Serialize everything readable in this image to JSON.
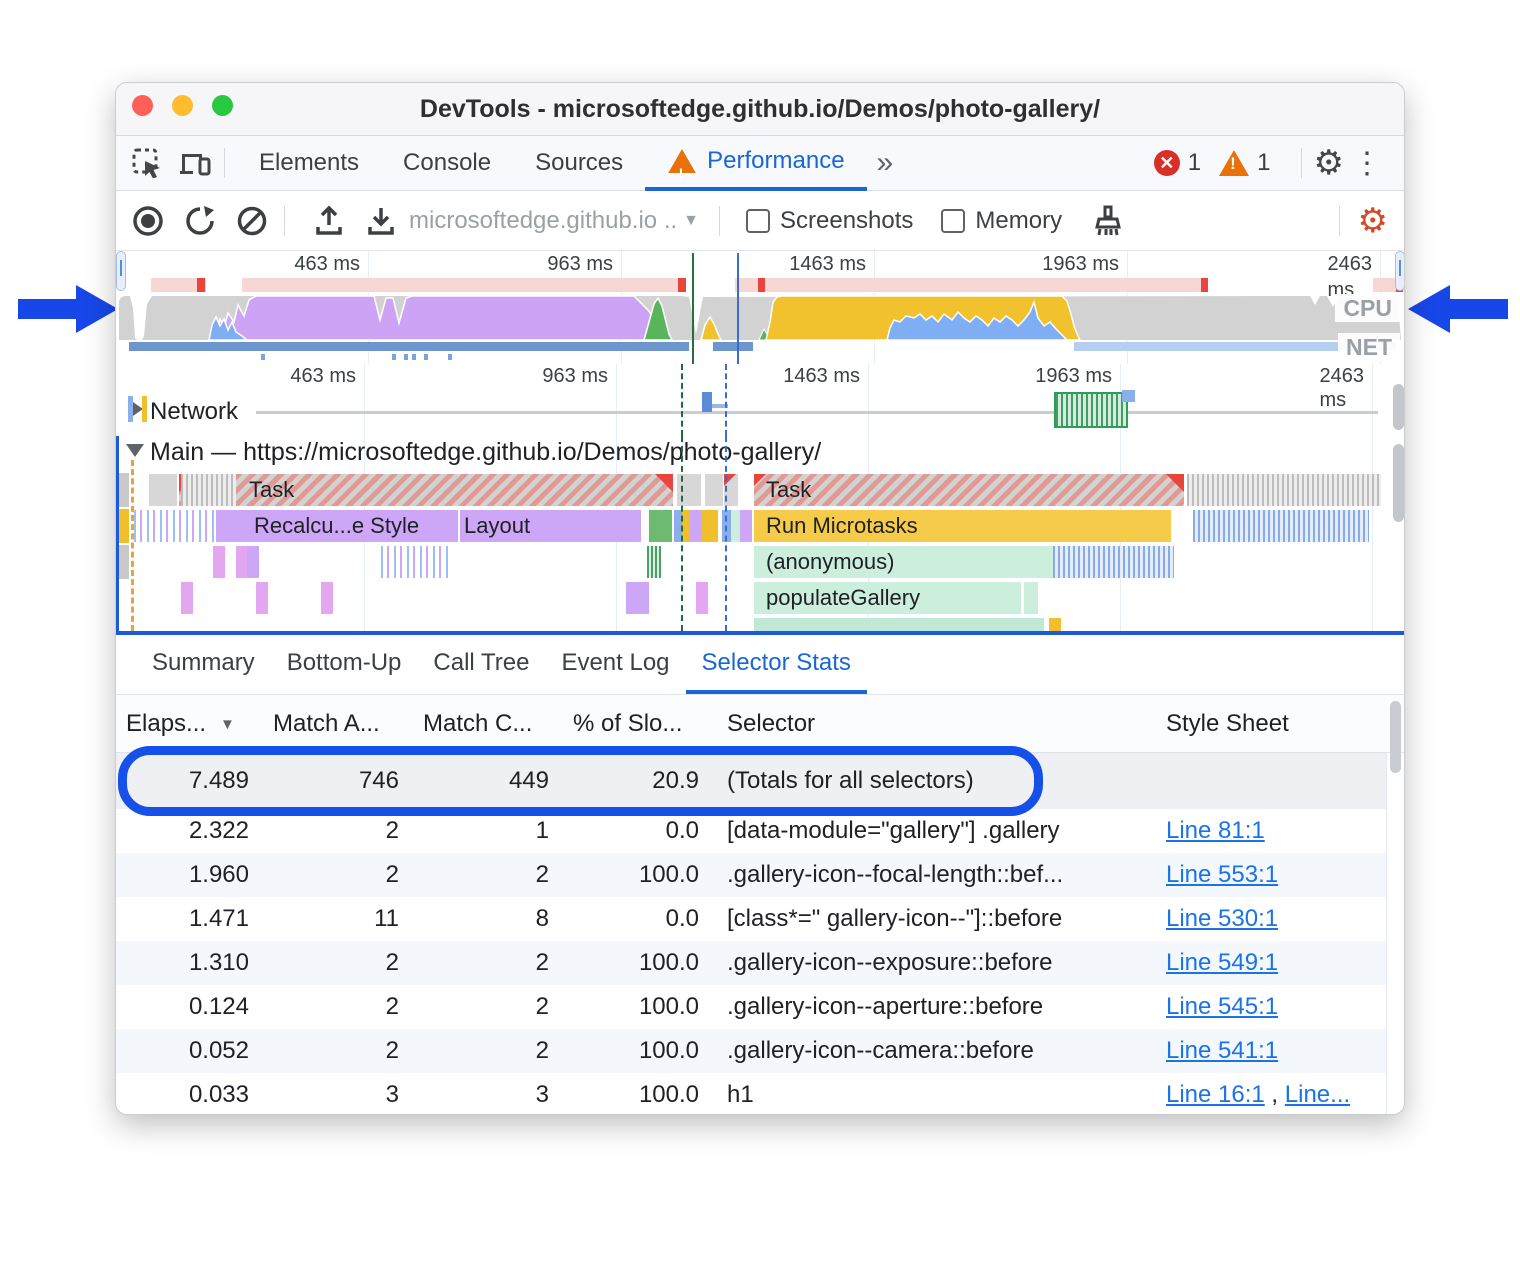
{
  "window": {
    "title": "DevTools - microsoftedge.github.io/Demos/photo-gallery/"
  },
  "tabbar": {
    "tabs": [
      "Elements",
      "Console",
      "Sources",
      "Performance"
    ],
    "more": "»",
    "error_count": "1",
    "warning_count": "1"
  },
  "toolbar": {
    "url_label": "microsoftedge.github.io ..",
    "screenshots_label": "Screenshots",
    "memory_label": "Memory"
  },
  "overview": {
    "ticks": [
      "463 ms",
      "963 ms",
      "1463 ms",
      "1963 ms",
      "2463 ms"
    ],
    "cpu_label": "CPU",
    "net_label": "NET"
  },
  "timeline": {
    "ticks": [
      "463 ms",
      "963 ms",
      "1463 ms",
      "1963 ms",
      "2463 ms"
    ],
    "network_label": "Network",
    "main_label": "Main — https://microsoftedge.github.io/Demos/photo-gallery/"
  },
  "flame": {
    "task1_label": "Task",
    "task2_label": "Task",
    "recalc_label": "Recalcu...e Style",
    "layout_label": "Layout",
    "microtasks_label": "Run Microtasks",
    "anonymous_label": "(anonymous)",
    "populate_label": "populateGallery"
  },
  "bottom_tabs": [
    "Summary",
    "Bottom-Up",
    "Call Tree",
    "Event Log",
    "Selector Stats"
  ],
  "table": {
    "columns": [
      "Elaps...",
      "Match A...",
      "Match C...",
      "% of Slo...",
      "Selector",
      "Style Sheet"
    ],
    "rows": [
      {
        "elapsed": "7.489",
        "match_attempts": "746",
        "match_count": "449",
        "pct_slow": "20.9",
        "selector": "(Totals for all selectors)",
        "sheet_links": [],
        "totals": true
      },
      {
        "elapsed": "2.322",
        "match_attempts": "2",
        "match_count": "1",
        "pct_slow": "0.0",
        "selector": "[data-module=\"gallery\"] .gallery",
        "sheet_links": [
          "Line 81:1"
        ]
      },
      {
        "elapsed": "1.960",
        "match_attempts": "2",
        "match_count": "2",
        "pct_slow": "100.0",
        "selector": ".gallery-icon--focal-length::bef...",
        "sheet_links": [
          "Line 553:1"
        ]
      },
      {
        "elapsed": "1.471",
        "match_attempts": "11",
        "match_count": "8",
        "pct_slow": "0.0",
        "selector": "[class*=\" gallery-icon--\"]::before",
        "sheet_links": [
          "Line 530:1"
        ]
      },
      {
        "elapsed": "1.310",
        "match_attempts": "2",
        "match_count": "2",
        "pct_slow": "100.0",
        "selector": ".gallery-icon--exposure::before",
        "sheet_links": [
          "Line 549:1"
        ]
      },
      {
        "elapsed": "0.124",
        "match_attempts": "2",
        "match_count": "2",
        "pct_slow": "100.0",
        "selector": ".gallery-icon--aperture::before",
        "sheet_links": [
          "Line 545:1"
        ]
      },
      {
        "elapsed": "0.052",
        "match_attempts": "2",
        "match_count": "2",
        "pct_slow": "100.0",
        "selector": ".gallery-icon--camera::before",
        "sheet_links": [
          "Line 541:1"
        ]
      },
      {
        "elapsed": "0.033",
        "match_attempts": "3",
        "match_count": "3",
        "pct_slow": "100.0",
        "selector": "h1",
        "sheet_links": [
          "Line 16:1",
          "Line..."
        ]
      }
    ]
  },
  "colors": {
    "accent_blue": "#1a66d4",
    "highlight_blue": "#1550e8",
    "cpu_purple": "#cda4f5",
    "cpu_yellow": "#f2c12e",
    "cpu_green": "#58b55c",
    "cpu_blue": "#7faef5",
    "cpu_gray": "#d2d2d2",
    "flame_green": "#cbeedd",
    "long_task_red": "#e8453c"
  }
}
